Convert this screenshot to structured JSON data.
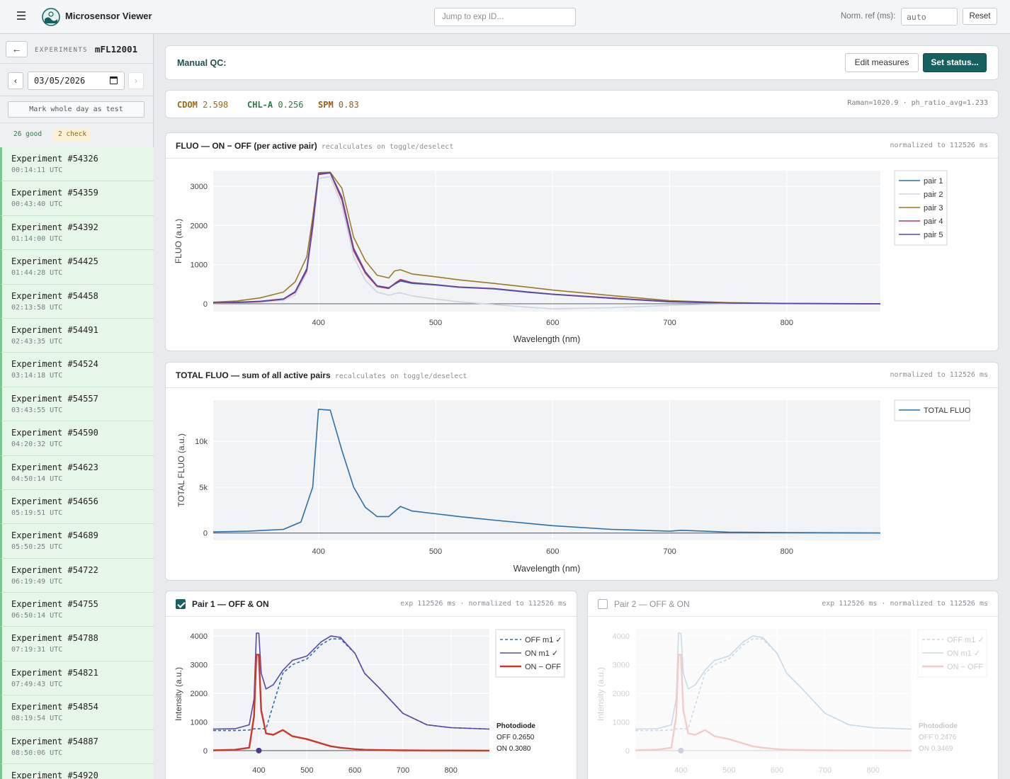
{
  "header": {
    "app_title": "Microsensor Viewer",
    "jump_placeholder": "Jump to exp ID...",
    "norm_label": "Norm. ref (ms):",
    "norm_placeholder": "auto",
    "reset_label": "Reset"
  },
  "sidebar": {
    "back_icon": "arrow-left-icon",
    "experiments_label": "EXPERIMENTS",
    "experiment_id": "mFL12001",
    "prev_label": "‹",
    "next_label": "›",
    "date": "03/05/2026",
    "mark_day_label": "Mark whole day as test",
    "badge_good": "26 good",
    "badge_check": "2 check",
    "items": [
      {
        "name": "Experiment #54326",
        "time": "00:14:11 UTC"
      },
      {
        "name": "Experiment #54359",
        "time": "00:43:40 UTC"
      },
      {
        "name": "Experiment #54392",
        "time": "01:14:00 UTC"
      },
      {
        "name": "Experiment #54425",
        "time": "01:44:28 UTC"
      },
      {
        "name": "Experiment #54458",
        "time": "02:13:58 UTC"
      },
      {
        "name": "Experiment #54491",
        "time": "02:43:35 UTC"
      },
      {
        "name": "Experiment #54524",
        "time": "03:14:18 UTC"
      },
      {
        "name": "Experiment #54557",
        "time": "03:43:55 UTC"
      },
      {
        "name": "Experiment #54590",
        "time": "04:20:32 UTC"
      },
      {
        "name": "Experiment #54623",
        "time": "04:50:14 UTC"
      },
      {
        "name": "Experiment #54656",
        "time": "05:19:51 UTC"
      },
      {
        "name": "Experiment #54689",
        "time": "05:50:25 UTC"
      },
      {
        "name": "Experiment #54722",
        "time": "06:19:49 UTC"
      },
      {
        "name": "Experiment #54755",
        "time": "06:50:14 UTC"
      },
      {
        "name": "Experiment #54788",
        "time": "07:19:31 UTC"
      },
      {
        "name": "Experiment #54821",
        "time": "07:49:43 UTC"
      },
      {
        "name": "Experiment #54854",
        "time": "08:19:54 UTC"
      },
      {
        "name": "Experiment #54887",
        "time": "08:50:06 UTC"
      },
      {
        "name": "Experiment #54920",
        "time": ""
      }
    ]
  },
  "qc": {
    "title": "Manual QC:",
    "edit_label": "Edit measures",
    "status_label": "Set status..."
  },
  "measures": {
    "cdom_key": "CDOM",
    "cdom_val": "2.598",
    "chla_key": "CHL-A",
    "chla_val": "0.256",
    "spm_key": "SPM",
    "spm_val": "0.83",
    "meta": "Raman=1020.9 · ph_ratio_avg=1.233"
  },
  "fluo_chart": {
    "title": "FLUO — ON − OFF (per active pair)",
    "subtitle": "recalculates on toggle/deselect",
    "right": "normalized to 112526 ms"
  },
  "total_chart": {
    "title": "TOTAL FLUO — sum of all active pairs",
    "subtitle": "recalculates on toggle/deselect",
    "right": "normalized to 112526 ms"
  },
  "pair1": {
    "title": "Pair 1 — OFF & ON",
    "right": "exp 112526 ms · normalized to 112526 ms",
    "photodiode_label": "Photodiode",
    "off": "OFF 0.2650",
    "on": "ON 0.3080"
  },
  "pair2": {
    "title": "Pair 2 — OFF & ON",
    "right": "exp 112526 ms · normalized to 112526 ms",
    "photodiode_label": "Photodiode",
    "off": "OFF 0.2476",
    "on": "ON 0.3469"
  },
  "chart_data": [
    {
      "type": "line",
      "title": "",
      "xlabel": "Wavelength (nm)",
      "ylabel": "FLUO (a.u.)",
      "xlim": [
        310,
        880
      ],
      "ylim": [
        -200,
        3400
      ],
      "x_ticks": [
        400,
        500,
        600,
        700,
        800
      ],
      "y_ticks": [
        0,
        1000,
        2000,
        3000
      ],
      "legend": "right",
      "x": [
        310,
        330,
        350,
        370,
        380,
        390,
        395,
        400,
        410,
        420,
        430,
        440,
        450,
        460,
        465,
        470,
        480,
        500,
        520,
        550,
        580,
        600,
        650,
        700,
        750,
        800,
        850,
        880
      ],
      "series": [
        {
          "name": "pair 1",
          "color": "#2c6fa8",
          "values": [
            20,
            35,
            60,
            120,
            300,
            900,
            2000,
            3300,
            3350,
            2700,
            1400,
            800,
            450,
            400,
            500,
            580,
            520,
            480,
            420,
            380,
            290,
            240,
            140,
            50,
            15,
            5,
            0,
            0
          ]
        },
        {
          "name": "pair 2",
          "color": "#cfd4e4",
          "values": [
            10,
            20,
            40,
            90,
            220,
            800,
            1900,
            3200,
            3250,
            2500,
            1200,
            600,
            300,
            220,
            260,
            280,
            200,
            120,
            50,
            -20,
            -90,
            -130,
            -100,
            -40,
            0,
            5,
            5,
            0
          ]
        },
        {
          "name": "pair 3",
          "color": "#9b7a27",
          "values": [
            40,
            70,
            150,
            300,
            560,
            1200,
            2200,
            3350,
            3360,
            2950,
            1700,
            1100,
            730,
            660,
            840,
            870,
            760,
            690,
            610,
            520,
            420,
            350,
            210,
            80,
            30,
            10,
            5,
            0
          ]
        },
        {
          "name": "pair 4",
          "color": "#b63b5c",
          "values": [
            20,
            30,
            55,
            115,
            290,
            850,
            1950,
            3300,
            3340,
            2650,
            1350,
            780,
            440,
            390,
            520,
            620,
            540,
            490,
            430,
            390,
            300,
            245,
            150,
            60,
            20,
            8,
            2,
            0
          ]
        },
        {
          "name": "pair 5",
          "color": "#5c47a8",
          "values": [
            25,
            40,
            65,
            125,
            310,
            880,
            2050,
            3320,
            3350,
            2720,
            1420,
            820,
            460,
            410,
            510,
            600,
            530,
            485,
            425,
            385,
            295,
            245,
            140,
            55,
            18,
            6,
            2,
            0
          ]
        }
      ]
    },
    {
      "type": "line",
      "title": "",
      "xlabel": "Wavelength (nm)",
      "ylabel": "TOTAL FLUO (a.u.)",
      "xlim": [
        310,
        880
      ],
      "ylim": [
        -800,
        14500
      ],
      "x_ticks": [
        400,
        500,
        600,
        700,
        800
      ],
      "y_ticks": [
        0,
        5000,
        10000
      ],
      "y_tick_labels": [
        "0",
        "5k",
        "10k"
      ],
      "legend": "top-right",
      "x": [
        310,
        340,
        370,
        385,
        395,
        400,
        410,
        420,
        430,
        440,
        450,
        460,
        470,
        480,
        500,
        520,
        550,
        600,
        650,
        700,
        710,
        750,
        800,
        880
      ],
      "series": [
        {
          "name": "TOTAL FLUO",
          "color": "#2c6fa8",
          "values": [
            120,
            200,
            400,
            1200,
            5000,
            13500,
            13400,
            9000,
            5000,
            2800,
            1800,
            1800,
            2900,
            2400,
            2100,
            1800,
            1400,
            800,
            400,
            200,
            300,
            100,
            50,
            0
          ]
        }
      ]
    },
    {
      "type": "line",
      "title": "",
      "xlabel": "",
      "ylabel": "Intensity (a.u.)",
      "xlim": [
        305,
        880
      ],
      "ylim": [
        -300,
        4250
      ],
      "x_ticks": [
        400,
        500,
        600,
        700,
        800
      ],
      "y_ticks": [
        0,
        1000,
        2000,
        3000,
        4000
      ],
      "legend": "right",
      "x": [
        305,
        350,
        380,
        390,
        395,
        400,
        405,
        415,
        430,
        450,
        470,
        500,
        530,
        550,
        570,
        600,
        620,
        650,
        700,
        750,
        800,
        880
      ],
      "series": [
        {
          "name": "OFF m1 ✓",
          "color": "#2c6fa8",
          "dash": "4,3",
          "values": [
            700,
            700,
            720,
            760,
            760,
            760,
            760,
            760,
            1600,
            2700,
            3000,
            3200,
            3700,
            3900,
            3900,
            3400,
            2700,
            2200,
            1300,
            900,
            800,
            750
          ]
        },
        {
          "name": "ON m1 ✓",
          "color": "#5c47a8",
          "values": [
            750,
            760,
            900,
            1800,
            4100,
            4100,
            2700,
            2150,
            2300,
            2800,
            3150,
            3300,
            3800,
            4000,
            3950,
            3400,
            2700,
            2200,
            1300,
            900,
            800,
            750
          ]
        },
        {
          "name": "ON − OFF",
          "color": "#c8392b",
          "values": [
            10,
            30,
            100,
            1200,
            3350,
            3350,
            1400,
            600,
            550,
            720,
            500,
            400,
            250,
            150,
            100,
            50,
            30,
            20,
            10,
            5,
            5,
            0
          ]
        }
      ]
    },
    {
      "type": "line",
      "title": "",
      "xlabel": "",
      "ylabel": "Intensity (a.u.)",
      "xlim": [
        305,
        880
      ],
      "ylim": [
        -300,
        4250
      ],
      "x_ticks": [
        400,
        500,
        600,
        700,
        800
      ],
      "y_ticks": [
        0,
        1000,
        2000,
        3000,
        4000
      ],
      "legend": "right",
      "x": [
        305,
        350,
        380,
        390,
        395,
        400,
        405,
        415,
        430,
        450,
        470,
        500,
        530,
        550,
        570,
        600,
        620,
        650,
        700,
        750,
        800,
        880
      ],
      "series": [
        {
          "name": "OFF m1 ✓",
          "color": "#2c6fa8",
          "dash": "4,3",
          "values": [
            700,
            700,
            720,
            760,
            760,
            760,
            760,
            760,
            1600,
            2700,
            3000,
            3200,
            3700,
            3900,
            3900,
            3400,
            2700,
            2200,
            1300,
            900,
            800,
            750
          ]
        },
        {
          "name": "ON m1 ✓",
          "color": "#2c6fa8",
          "values": [
            750,
            760,
            900,
            1800,
            4100,
            4100,
            2700,
            2150,
            2300,
            2800,
            3150,
            3300,
            3800,
            4000,
            3950,
            3400,
            2700,
            2200,
            1300,
            900,
            800,
            750
          ]
        },
        {
          "name": "ON − OFF",
          "color": "#c8392b",
          "values": [
            10,
            30,
            100,
            1200,
            3350,
            3350,
            1400,
            600,
            550,
            720,
            500,
            400,
            250,
            150,
            100,
            50,
            30,
            20,
            10,
            5,
            5,
            0
          ]
        }
      ]
    }
  ]
}
